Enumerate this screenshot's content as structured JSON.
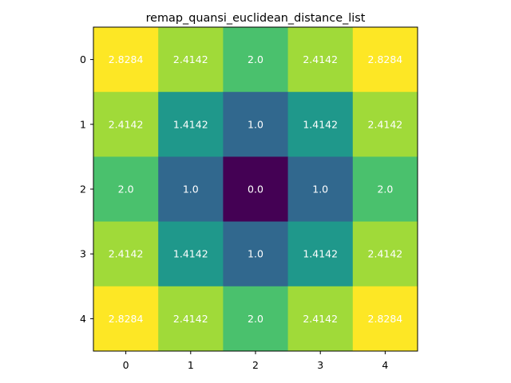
{
  "chart_data": {
    "type": "heatmap",
    "title": "remap_quansi_euclidean_distance_list",
    "xlabel": "",
    "ylabel": "",
    "x_ticks": [
      "0",
      "1",
      "2",
      "3",
      "4"
    ],
    "y_ticks": [
      "0",
      "1",
      "2",
      "3",
      "4"
    ],
    "colormap": "viridis",
    "value_range": [
      0.0,
      2.8284
    ],
    "grid": false,
    "colorbar": false,
    "values": [
      [
        2.8284,
        2.4142,
        2.0,
        2.4142,
        2.8284
      ],
      [
        2.4142,
        1.4142,
        1.0,
        1.4142,
        2.4142
      ],
      [
        2.0,
        1.0,
        0.0,
        1.0,
        2.0
      ],
      [
        2.4142,
        1.4142,
        1.0,
        1.4142,
        2.4142
      ],
      [
        2.8284,
        2.4142,
        2.0,
        2.4142,
        2.8284
      ]
    ],
    "cell_labels": [
      [
        "2.8284",
        "2.4142",
        "2.0",
        "2.4142",
        "2.8284"
      ],
      [
        "2.4142",
        "1.4142",
        "1.0",
        "1.4142",
        "2.4142"
      ],
      [
        "2.0",
        "1.0",
        "0.0",
        "1.0",
        "2.0"
      ],
      [
        "2.4142",
        "1.4142",
        "1.0",
        "1.4142",
        "2.4142"
      ],
      [
        "2.8284",
        "2.4142",
        "2.0",
        "2.4142",
        "2.8284"
      ]
    ],
    "colors": {
      "2.8284": "#fde725",
      "2.4142": "#a0da39",
      "2.0": "#4ac16d",
      "1.4142": "#1f988b",
      "1.0": "#31688e",
      "0.0": "#440154"
    },
    "label_color": "#ffffff"
  }
}
